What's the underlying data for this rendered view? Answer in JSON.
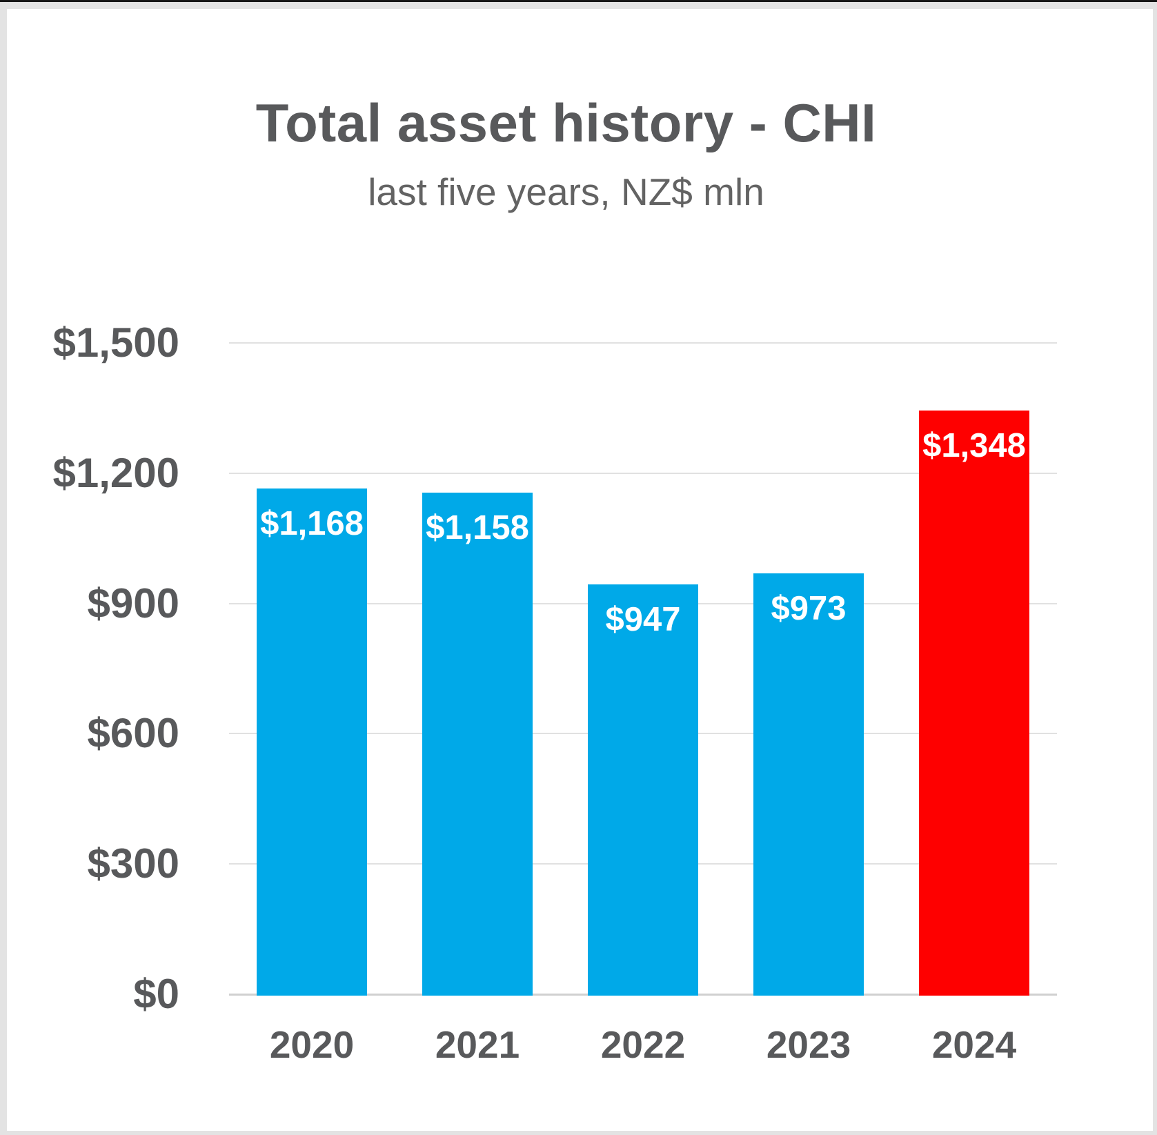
{
  "chart_data": {
    "type": "bar",
    "title": "Total asset history - CHI",
    "subtitle": "last five years, NZ$ mln",
    "categories": [
      "2020",
      "2021",
      "2022",
      "2023",
      "2024"
    ],
    "values": [
      1168,
      1158,
      947,
      973,
      1348
    ],
    "value_labels": [
      "$1,168",
      "$1,158",
      "$947",
      "$973",
      "$1,348"
    ],
    "bar_colors": [
      "#00a9e8",
      "#00a9e8",
      "#00a9e8",
      "#00a9e8",
      "#fe0000"
    ],
    "series_color": "#00a9e8",
    "highlight_index": 4,
    "highlight_color": "#fe0000",
    "ylim": [
      0,
      1500
    ],
    "yticks": [
      {
        "value": 0,
        "label": "$0"
      },
      {
        "value": 300,
        "label": "$300"
      },
      {
        "value": 600,
        "label": "$600"
      },
      {
        "value": 900,
        "label": "$900"
      },
      {
        "value": 1200,
        "label": "$1,200"
      },
      {
        "value": 1500,
        "label": "$1,500"
      }
    ],
    "grid": true,
    "legend": "none",
    "value_label_position": "inside-top",
    "colors": {
      "grid": "#e1e1e1",
      "axis_line": "#d0d0d0",
      "text": "#58595b",
      "value_label_text": "#ffffff",
      "frame": "#e3e3e3",
      "background": "#ffffff"
    }
  }
}
